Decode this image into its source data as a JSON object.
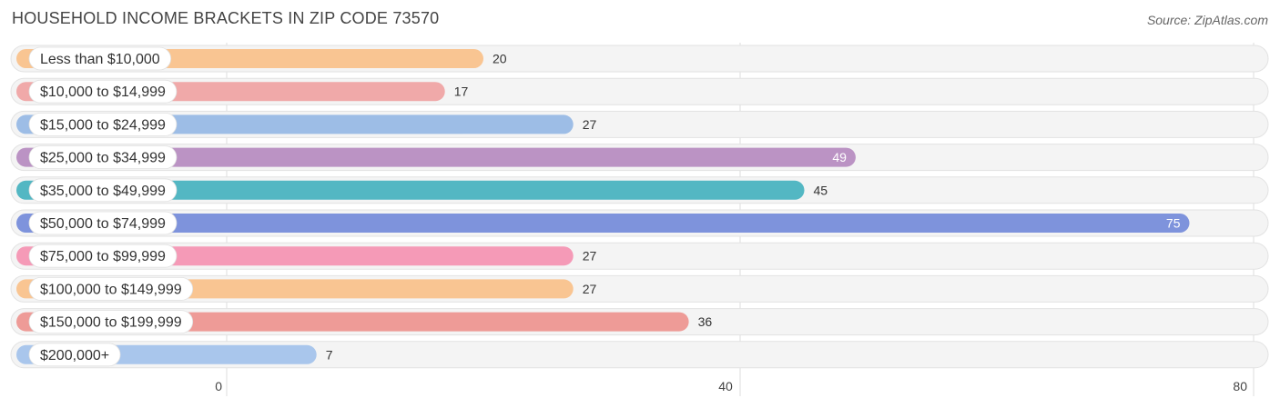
{
  "header": {
    "title": "HOUSEHOLD INCOME BRACKETS IN ZIP CODE 73570",
    "source": "Source: ZipAtlas.com"
  },
  "chart_data": {
    "type": "bar",
    "orientation": "horizontal",
    "title": "HOUSEHOLD INCOME BRACKETS IN ZIP CODE 73570",
    "categories": [
      "Less than $10,000",
      "$10,000 to $14,999",
      "$15,000 to $24,999",
      "$25,000 to $34,999",
      "$35,000 to $49,999",
      "$50,000 to $74,999",
      "$75,000 to $99,999",
      "$100,000 to $149,999",
      "$150,000 to $199,999",
      "$200,000+"
    ],
    "values": [
      20,
      17,
      27,
      49,
      45,
      75,
      27,
      27,
      36,
      7
    ],
    "colors": [
      "#f9c592",
      "#f0a9a9",
      "#9dbde6",
      "#bb93c4",
      "#53b7c3",
      "#7e93dc",
      "#f59ab7",
      "#f9c592",
      "#ee9b97",
      "#a9c6ec"
    ],
    "value_label_inside": [
      false,
      false,
      false,
      true,
      false,
      true,
      false,
      false,
      false,
      false
    ],
    "xlim": [
      0,
      80
    ],
    "xticks": [
      0,
      40,
      80
    ],
    "grid": true
  }
}
